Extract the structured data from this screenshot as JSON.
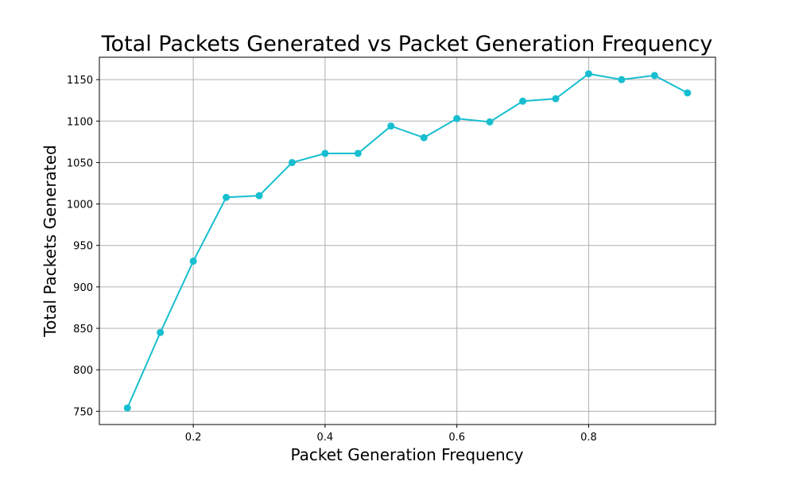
{
  "chart_data": {
    "type": "line",
    "title": "Total Packets Generated vs Packet Generation Frequency",
    "xlabel": "Packet Generation Frequency",
    "ylabel": "Total Packets Generated",
    "x": [
      0.1,
      0.15,
      0.2,
      0.25,
      0.3,
      0.35,
      0.4,
      0.45,
      0.5,
      0.55,
      0.6,
      0.65,
      0.7,
      0.75,
      0.8,
      0.85,
      0.9,
      0.95
    ],
    "series": [
      {
        "values": [
          754,
          845,
          931,
          1008,
          1010,
          1050,
          1061,
          1061,
          1094,
          1080,
          1103,
          1099,
          1124,
          1127,
          1157,
          1150,
          1155,
          1134
        ],
        "color": "#17becf",
        "marker": "circle"
      }
    ],
    "xlim": [
      0.0575,
      0.9925
    ],
    "ylim": [
      734,
      1177
    ],
    "xticks": [
      0.2,
      0.4,
      0.6,
      0.8
    ],
    "xtick_labels": [
      "0.2",
      "0.4",
      "0.6",
      "0.8"
    ],
    "yticks": [
      750,
      800,
      850,
      900,
      950,
      1000,
      1050,
      1100,
      1150
    ],
    "ytick_labels": [
      "750",
      "800",
      "850",
      "900",
      "950",
      "1000",
      "1050",
      "1100",
      "1150"
    ],
    "grid": true,
    "legend": "none"
  }
}
